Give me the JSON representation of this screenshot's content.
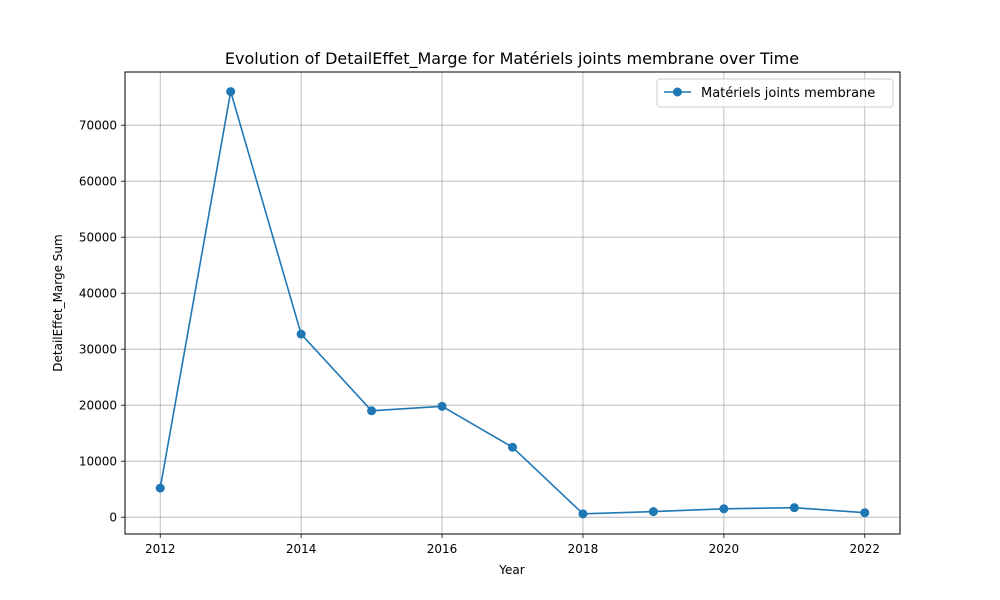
{
  "chart_data": {
    "type": "line",
    "title": "Evolution of DetailEffet_Marge for Matériels joints membrane over Time",
    "xlabel": "Year",
    "ylabel": "DetailEffet_Marge Sum",
    "xlim": [
      2011.5,
      2022.5
    ],
    "ylim": [
      -3000,
      79500
    ],
    "xticks": [
      2012,
      2014,
      2016,
      2018,
      2020,
      2022
    ],
    "yticks": [
      0,
      10000,
      20000,
      30000,
      40000,
      50000,
      60000,
      70000
    ],
    "grid": true,
    "legend_position": "top-right",
    "series": [
      {
        "name": "Matériels joints membrane",
        "color": "#1f77b4",
        "marker": "circle",
        "x": [
          2012,
          2013,
          2014,
          2015,
          2016,
          2017,
          2018,
          2019,
          2020,
          2021,
          2022
        ],
        "y": [
          5200,
          76000,
          32700,
          19000,
          19800,
          12500,
          600,
          1000,
          1500,
          1700,
          800
        ]
      }
    ]
  }
}
